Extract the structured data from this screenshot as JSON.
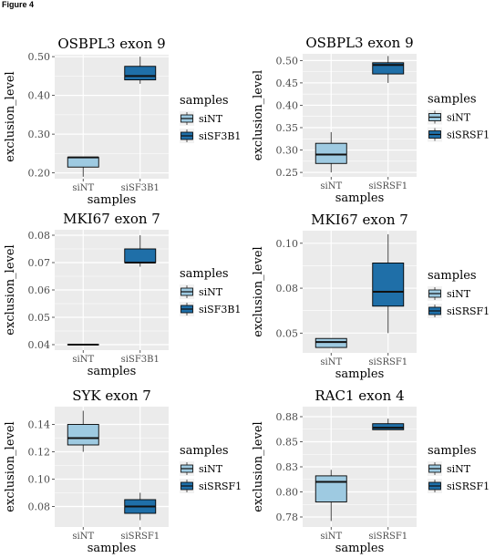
{
  "figure_label": "Figure 4",
  "colors": {
    "panel_bg": "#ebebeb",
    "grid": "#ffffff",
    "box_stroke": "#000000",
    "siNT": "#9ecae1",
    "treatment": "#1f6fa8",
    "axis_text": "#4d4d4d"
  },
  "chart_data": [
    {
      "type": "box",
      "title": "OSBPL3  exon  9",
      "xlabel": "samples",
      "ylabel": "exclusion_level",
      "ylim": [
        0.185,
        0.505
      ],
      "yticks": [
        0.2,
        0.3,
        0.4,
        0.5
      ],
      "ytick_labels": [
        "0.20",
        "0.30",
        "0.40",
        "0.50"
      ],
      "categories": [
        "siNT",
        "siSF3B1"
      ],
      "boxes": [
        {
          "label": "siNT",
          "min": 0.19,
          "q1": 0.215,
          "median": 0.24,
          "q3": 0.24,
          "max": 0.24
        },
        {
          "label": "siSF3B1",
          "min": 0.43,
          "q1": 0.44,
          "median": 0.45,
          "q3": 0.475,
          "max": 0.5
        }
      ],
      "legend": {
        "title": "samples",
        "entries": [
          "siNT",
          "siSF3B1"
        ],
        "position": "right"
      }
    },
    {
      "type": "box",
      "title": "OSBPL3  exon  9",
      "xlabel": "samples",
      "ylabel": "exclusion_level",
      "ylim": [
        0.24,
        0.515
      ],
      "yticks": [
        0.25,
        0.3,
        0.35,
        0.4,
        0.45,
        0.5
      ],
      "ytick_labels": [
        "0.25",
        "0.30",
        "0.35",
        "0.40",
        "0.45",
        "0.50"
      ],
      "categories": [
        "siNT",
        "siSRSF1"
      ],
      "boxes": [
        {
          "label": "siNT",
          "min": 0.25,
          "q1": 0.27,
          "median": 0.29,
          "q3": 0.315,
          "max": 0.34
        },
        {
          "label": "siSRSF1",
          "min": 0.45,
          "q1": 0.47,
          "median": 0.49,
          "q3": 0.495,
          "max": 0.51
        }
      ],
      "legend": {
        "title": "samples",
        "entries": [
          "siNT",
          "siSRSF1"
        ],
        "position": "right"
      }
    },
    {
      "type": "box",
      "title": "MKI67  exon  7",
      "xlabel": "samples",
      "ylabel": "exclusion_level",
      "ylim": [
        0.038,
        0.082
      ],
      "yticks": [
        0.04,
        0.05,
        0.06,
        0.07,
        0.08
      ],
      "ytick_labels": [
        "0.04",
        "0.05",
        "0.06",
        "0.07",
        "0.08"
      ],
      "categories": [
        "siNT",
        "siSF3B1"
      ],
      "boxes": [
        {
          "label": "siNT",
          "min": 0.04,
          "q1": 0.04,
          "median": 0.04,
          "q3": 0.04,
          "max": 0.04
        },
        {
          "label": "siSF3B1",
          "min": 0.0685,
          "q1": 0.07,
          "median": 0.07,
          "q3": 0.075,
          "max": 0.08
        }
      ],
      "legend": {
        "title": "samples",
        "entries": [
          "siNT",
          "siSF3B1"
        ],
        "position": "right"
      }
    },
    {
      "type": "box",
      "title": "MKI67  exon  7",
      "xlabel": "samples",
      "ylabel": "exclusion_level",
      "ylim": [
        0.039,
        0.107
      ],
      "yticks": [
        0.05,
        0.075,
        0.1
      ],
      "ytick_labels": [
        "0.05",
        "0.08",
        "0.10"
      ],
      "categories": [
        "siNT",
        "siSRSF1"
      ],
      "boxes": [
        {
          "label": "siNT",
          "min": 0.042,
          "q1": 0.042,
          "median": 0.045,
          "q3": 0.047,
          "max": 0.047
        },
        {
          "label": "siSRSF1",
          "min": 0.05,
          "q1": 0.065,
          "median": 0.073,
          "q3": 0.089,
          "max": 0.105
        }
      ],
      "legend": {
        "title": "samples",
        "entries": [
          "siNT",
          "siSRSF1"
        ],
        "position": "right"
      }
    },
    {
      "type": "box",
      "title": "SYK  exon  7",
      "xlabel": "samples",
      "ylabel": "exclusion_level",
      "ylim": [
        0.065,
        0.153
      ],
      "yticks": [
        0.08,
        0.1,
        0.12,
        0.14
      ],
      "ytick_labels": [
        "0.08",
        "0.10",
        "0.12",
        "0.14"
      ],
      "categories": [
        "siNT",
        "siSRSF1"
      ],
      "boxes": [
        {
          "label": "siNT",
          "min": 0.12,
          "q1": 0.125,
          "median": 0.13,
          "q3": 0.14,
          "max": 0.15
        },
        {
          "label": "siSRSF1",
          "min": 0.07,
          "q1": 0.075,
          "median": 0.08,
          "q3": 0.085,
          "max": 0.09
        }
      ],
      "legend": {
        "title": "samples",
        "entries": [
          "siNT",
          "siSRSF1"
        ],
        "position": "right"
      }
    },
    {
      "type": "box",
      "title": "RAC1  exon  4",
      "xlabel": "samples",
      "ylabel": "exclusion_level",
      "ylim": [
        0.765,
        0.885
      ],
      "yticks": [
        0.775,
        0.8,
        0.825,
        0.85,
        0.875
      ],
      "ytick_labels": [
        "0.78",
        "0.80",
        "0.83",
        "0.85",
        "0.88"
      ],
      "categories": [
        "siNT",
        "siSRSF1"
      ],
      "boxes": [
        {
          "label": "siNT",
          "min": 0.771,
          "q1": 0.79,
          "median": 0.81,
          "q3": 0.816,
          "max": 0.822
        },
        {
          "label": "siSRSF1",
          "min": 0.862,
          "q1": 0.862,
          "median": 0.864,
          "q3": 0.868,
          "max": 0.873
        }
      ],
      "legend": {
        "title": "samples",
        "entries": [
          "siNT",
          "siSRSF1"
        ],
        "position": "right"
      }
    }
  ]
}
